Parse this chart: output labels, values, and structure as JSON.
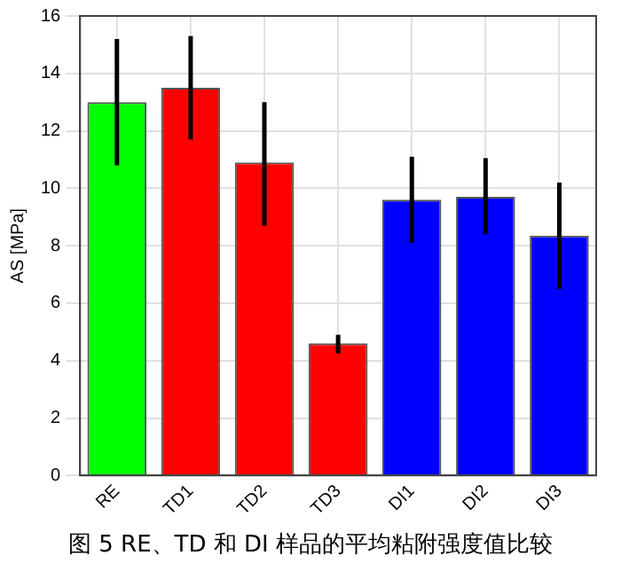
{
  "chart_data": {
    "type": "bar",
    "ylabel": "AS [MPa]",
    "categories": [
      "RE",
      "TD1",
      "TD2",
      "TD3",
      "DI1",
      "DI2",
      "DI3"
    ],
    "values": [
      13.0,
      13.5,
      10.9,
      4.6,
      9.6,
      9.7,
      8.35
    ],
    "colors": [
      "#00ff00",
      "#ff0000",
      "#ff0000",
      "#ff0000",
      "#0000ff",
      "#0000ff",
      "#0000ff"
    ],
    "errors": [
      [
        10.8,
        15.2
      ],
      [
        11.7,
        15.3
      ],
      [
        8.7,
        13.0
      ],
      [
        4.25,
        4.9
      ],
      [
        8.1,
        11.1
      ],
      [
        8.4,
        11.05
      ],
      [
        6.5,
        10.2
      ]
    ],
    "ylim": [
      0,
      16
    ],
    "yticks": [
      0,
      2,
      4,
      6,
      8,
      10,
      12,
      14,
      16
    ],
    "grid": true,
    "annotations": [
      "图 5 RE、TD 和 DI 样品的平均粘附强度值比较"
    ]
  }
}
